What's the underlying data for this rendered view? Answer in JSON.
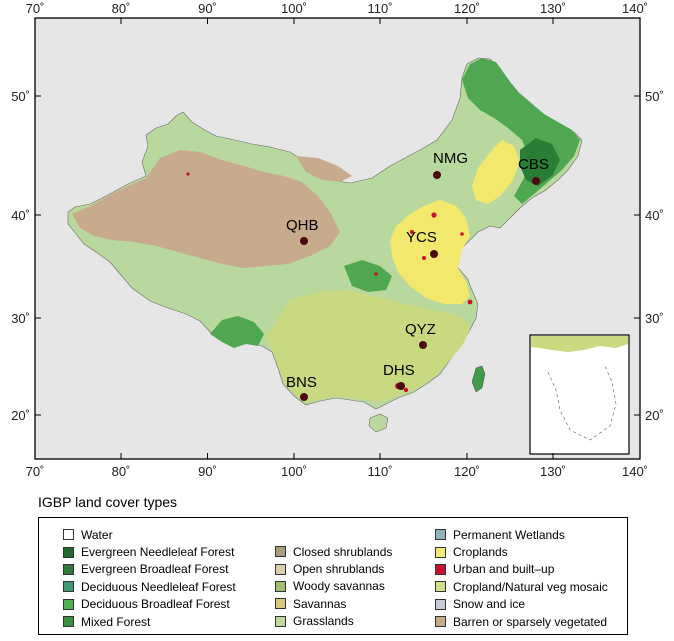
{
  "map": {
    "x_ticks": [
      "70˚",
      "80˚",
      "90˚",
      "100˚",
      "110˚",
      "120˚",
      "130˚",
      "140˚"
    ],
    "y_ticks": [
      "20˚",
      "30˚",
      "40˚",
      "50˚"
    ],
    "colors": {
      "background": "#e6e6e6",
      "barren": "#c8ab8d",
      "grasslands": "#b9d89e",
      "croplands": "#f2e86c",
      "forest": "#4fa851",
      "dark_forest": "#2a7d34",
      "mosaic": "#cfdc84",
      "urban": "#c8102e",
      "site_marker": "#4a0a10"
    },
    "sites": [
      {
        "name": "NMG"
      },
      {
        "name": "CBS"
      },
      {
        "name": "QHB"
      },
      {
        "name": "YCS"
      },
      {
        "name": "QYZ"
      },
      {
        "name": "DHS"
      },
      {
        "name": "BNS"
      }
    ]
  },
  "legend": {
    "title": "IGBP land cover types",
    "items": [
      {
        "label": "Water",
        "color": "#ffffff"
      },
      {
        "label": "Evergreen Needleleaf Forest",
        "color": "#1e6b2c"
      },
      {
        "label": "Evergreen Broadleaf Forest",
        "color": "#2f7a3a"
      },
      {
        "label": "Deciduous Needleleaf Forest",
        "color": "#3f9a72"
      },
      {
        "label": "Deciduous Broadleaf Forest",
        "color": "#4fae4f"
      },
      {
        "label": "Mixed Forest",
        "color": "#3b8f42"
      },
      {
        "label": "Closed shrublands",
        "color": "#a99f80"
      },
      {
        "label": "Open shrublands",
        "color": "#d8cfa8"
      },
      {
        "label": "Woody savannas",
        "color": "#9fbf6e"
      },
      {
        "label": "Savannas",
        "color": "#d9c97a"
      },
      {
        "label": "Grasslands",
        "color": "#bcd99f"
      },
      {
        "label": "Permanent Wetlands",
        "color": "#8fb3b8"
      },
      {
        "label": "Croplands",
        "color": "#f4e877"
      },
      {
        "label": "Urban and built–up",
        "color": "#c8102e"
      },
      {
        "label": "Cropland/Natural veg mosaic",
        "color": "#d3e08a"
      },
      {
        "label": "Snow and ice",
        "color": "#c9ccd8"
      },
      {
        "label": "Barren or sparsely vegetated",
        "color": "#c8ab8d"
      }
    ]
  }
}
